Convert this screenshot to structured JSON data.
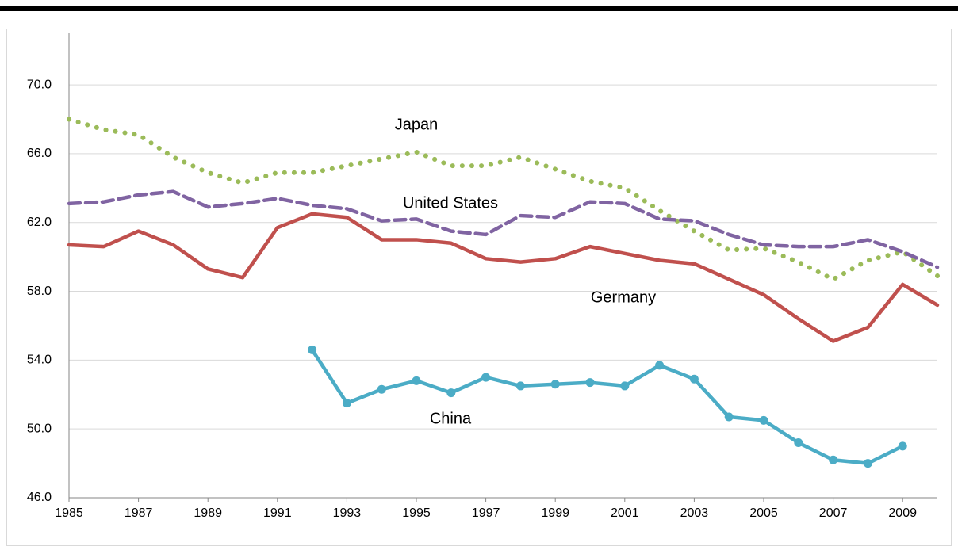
{
  "chart_data": {
    "type": "line",
    "x": [
      1985,
      1986,
      1987,
      1988,
      1989,
      1990,
      1991,
      1992,
      1993,
      1994,
      1995,
      1996,
      1997,
      1998,
      1999,
      2000,
      2001,
      2002,
      2003,
      2004,
      2005,
      2006,
      2007,
      2008,
      2009,
      2010
    ],
    "xlim": [
      1985,
      2010
    ],
    "xticks": [
      1985,
      1987,
      1989,
      1991,
      1993,
      1995,
      1997,
      1999,
      2001,
      2003,
      2005,
      2007,
      2009
    ],
    "ylim": [
      46,
      73
    ],
    "yticks": [
      {
        "value": 46,
        "label": "46.0"
      },
      {
        "value": 50,
        "label": "50.0"
      },
      {
        "value": 54,
        "label": "54.0"
      },
      {
        "value": 58,
        "label": "58.0"
      },
      {
        "value": 62,
        "label": "62.0"
      },
      {
        "value": 66,
        "label": "66.0"
      },
      {
        "value": 70,
        "label": "70.0"
      }
    ],
    "grid": true,
    "series": [
      {
        "name": "Japan",
        "color": "#9bbb59",
        "style": "dotted",
        "values": [
          68.0,
          67.4,
          67.1,
          65.8,
          64.9,
          64.3,
          64.9,
          64.9,
          65.3,
          65.7,
          66.1,
          65.3,
          65.3,
          65.8,
          65.1,
          64.4,
          64.0,
          62.7,
          61.5,
          60.4,
          60.5,
          59.7,
          58.7,
          59.8,
          60.3,
          58.9
        ]
      },
      {
        "name": "United States",
        "color": "#8064a2",
        "style": "dashed",
        "values": [
          63.1,
          63.2,
          63.6,
          63.8,
          62.9,
          63.1,
          63.4,
          63.0,
          62.8,
          62.1,
          62.2,
          61.5,
          61.3,
          62.4,
          62.3,
          63.2,
          63.1,
          62.2,
          62.1,
          61.3,
          60.7,
          60.6,
          60.6,
          61.0,
          60.3,
          59.4
        ]
      },
      {
        "name": "Germany",
        "color": "#c0504d",
        "style": "solid",
        "values": [
          60.7,
          60.6,
          61.5,
          60.7,
          59.3,
          58.8,
          61.7,
          62.5,
          62.3,
          61.0,
          61.0,
          60.8,
          59.9,
          59.7,
          59.9,
          60.6,
          60.2,
          59.8,
          59.6,
          58.7,
          57.8,
          56.4,
          55.1,
          55.9,
          58.4,
          57.2
        ]
      },
      {
        "name": "China",
        "color": "#4bacc6",
        "style": "solid",
        "markers": true,
        "values": [
          null,
          null,
          null,
          null,
          null,
          null,
          null,
          54.6,
          51.5,
          52.3,
          52.8,
          52.1,
          53.0,
          52.5,
          52.6,
          52.7,
          52.5,
          53.7,
          52.9,
          50.7,
          50.5,
          49.2,
          48.2,
          48.0,
          49.0,
          null
        ]
      }
    ]
  }
}
